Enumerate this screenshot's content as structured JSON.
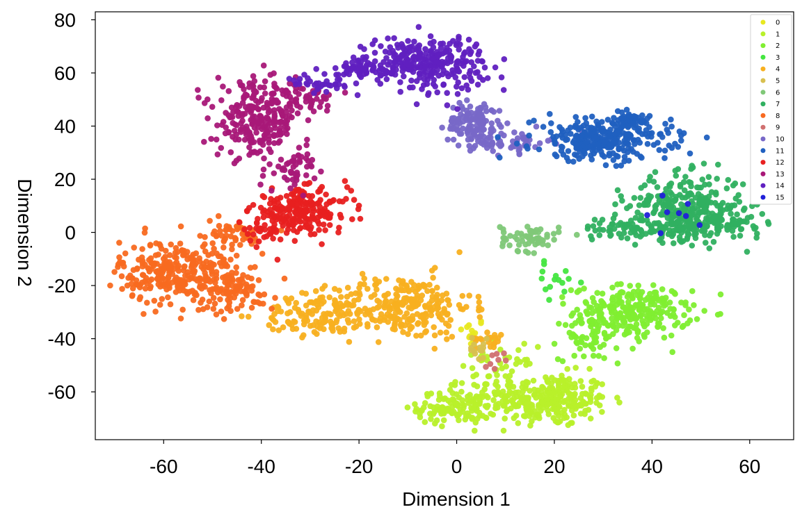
{
  "chart_data": {
    "type": "scatter",
    "xlabel": "Dimension 1",
    "ylabel": "Dimension 2",
    "xlim": [
      -74,
      69
    ],
    "ylim": [
      -78,
      83
    ],
    "x_ticks": [
      -60,
      -40,
      -20,
      0,
      20,
      40,
      60
    ],
    "y_ticks": [
      80,
      60,
      40,
      20,
      0,
      -20,
      -40,
      -60
    ],
    "x_tick_labels": [
      "-60",
      "-40",
      "-20",
      "0",
      "20",
      "40",
      "60"
    ],
    "y_tick_labels": [
      "80",
      "60",
      "40",
      "20",
      "0",
      "-20",
      "-40",
      "-60"
    ],
    "grid": false,
    "legend_position": "top-right",
    "series": [
      {
        "name": "0",
        "color": "#e8e820",
        "clusters": [
          {
            "cx": 3,
            "cy": -38,
            "sx": 1.5,
            "sy": 3,
            "n": 15
          }
        ]
      },
      {
        "name": "1",
        "color": "#b8f02a",
        "clusters": [
          {
            "cx": 19,
            "cy": -63,
            "sx": 6,
            "sy": 5,
            "n": 260
          },
          {
            "cx": 0,
            "cy": -66,
            "sx": 4,
            "sy": 3,
            "n": 110
          },
          {
            "cx": 8,
            "cy": -55,
            "sx": 4,
            "sy": 6,
            "n": 70
          }
        ]
      },
      {
        "name": "2",
        "color": "#80ee30",
        "clusters": [
          {
            "cx": 36,
            "cy": -30,
            "sx": 6,
            "sy": 5,
            "n": 260
          },
          {
            "cx": 27,
            "cy": -40,
            "sx": 3,
            "sy": 4,
            "n": 50
          }
        ]
      },
      {
        "name": "3",
        "color": "#44e640",
        "clusters": [
          {
            "cx": 21,
            "cy": -18,
            "sx": 3,
            "sy": 3,
            "n": 15
          }
        ]
      },
      {
        "name": "4",
        "color": "#f8b020",
        "clusters": [
          {
            "cx": -11,
            "cy": -28,
            "sx": 7,
            "sy": 6,
            "n": 260
          },
          {
            "cx": -28,
            "cy": -31,
            "sx": 6,
            "sy": 4,
            "n": 120
          },
          {
            "cx": 7,
            "cy": -40,
            "sx": 1.5,
            "sy": 1.5,
            "n": 20
          }
        ]
      },
      {
        "name": "5",
        "color": "#d8c050",
        "clusters": [
          {
            "cx": 4,
            "cy": -44,
            "sx": 1.5,
            "sy": 2,
            "n": 15
          }
        ]
      },
      {
        "name": "6",
        "color": "#80c878",
        "clusters": [
          {
            "cx": 15,
            "cy": -2,
            "sx": 3,
            "sy": 2.5,
            "n": 60
          }
        ]
      },
      {
        "name": "7",
        "color": "#30b060",
        "clusters": [
          {
            "cx": 47,
            "cy": 10,
            "sx": 6,
            "sy": 6,
            "n": 260
          },
          {
            "cx": 54,
            "cy": 3,
            "sx": 5,
            "sy": 3,
            "n": 90
          },
          {
            "cx": 38,
            "cy": 2,
            "sx": 6,
            "sy": 2,
            "n": 100
          }
        ]
      },
      {
        "name": "8",
        "color": "#f86a20",
        "clusters": [
          {
            "cx": -57,
            "cy": -15,
            "sx": 6,
            "sy": 6,
            "n": 300
          },
          {
            "cx": -45,
            "cy": -22,
            "sx": 4,
            "sy": 4,
            "n": 80
          },
          {
            "cx": -47,
            "cy": -1,
            "sx": 4,
            "sy": 3,
            "n": 50
          }
        ]
      },
      {
        "name": "9",
        "color": "#d07070",
        "clusters": [
          {
            "cx": 10,
            "cy": -48,
            "sx": 1.5,
            "sy": 1.5,
            "n": 8
          }
        ]
      },
      {
        "name": "10",
        "color": "#7868c8",
        "clusters": [
          {
            "cx": 4,
            "cy": 41,
            "sx": 3,
            "sy": 4,
            "n": 130
          },
          {
            "cx": 11,
            "cy": 34,
            "sx": 4,
            "sy": 2,
            "n": 50
          }
        ]
      },
      {
        "name": "11",
        "color": "#2060c0",
        "clusters": [
          {
            "cx": 30,
            "cy": 35,
            "sx": 7,
            "sy": 4,
            "n": 300
          },
          {
            "cx": 36,
            "cy": 42,
            "sx": 3,
            "sy": 2,
            "n": 40
          }
        ]
      },
      {
        "name": "12",
        "color": "#e82020",
        "clusters": [
          {
            "cx": -32,
            "cy": 8,
            "sx": 5,
            "sy": 4,
            "n": 220
          },
          {
            "cx": -40,
            "cy": 0,
            "sx": 2,
            "sy": 3,
            "n": 30
          }
        ]
      },
      {
        "name": "13",
        "color": "#a81878",
        "clusters": [
          {
            "cx": -41,
            "cy": 42,
            "sx": 4,
            "sy": 7,
            "n": 230
          },
          {
            "cx": -32,
            "cy": 50,
            "sx": 4,
            "sy": 3,
            "n": 60
          },
          {
            "cx": -33,
            "cy": 25,
            "sx": 2,
            "sy": 4,
            "n": 50
          }
        ]
      },
      {
        "name": "14",
        "color": "#6020c0",
        "clusters": [
          {
            "cx": -6,
            "cy": 64,
            "sx": 6,
            "sy": 5,
            "n": 280
          },
          {
            "cx": -19,
            "cy": 61,
            "sx": 4,
            "sy": 2,
            "n": 60
          },
          {
            "cx": -28,
            "cy": 56,
            "sx": 3,
            "sy": 2,
            "n": 30
          }
        ]
      },
      {
        "name": "15",
        "color": "#2020d8",
        "clusters": [
          {
            "cx": 46,
            "cy": 8,
            "sx": 3,
            "sy": 3,
            "n": 8
          }
        ]
      }
    ]
  }
}
